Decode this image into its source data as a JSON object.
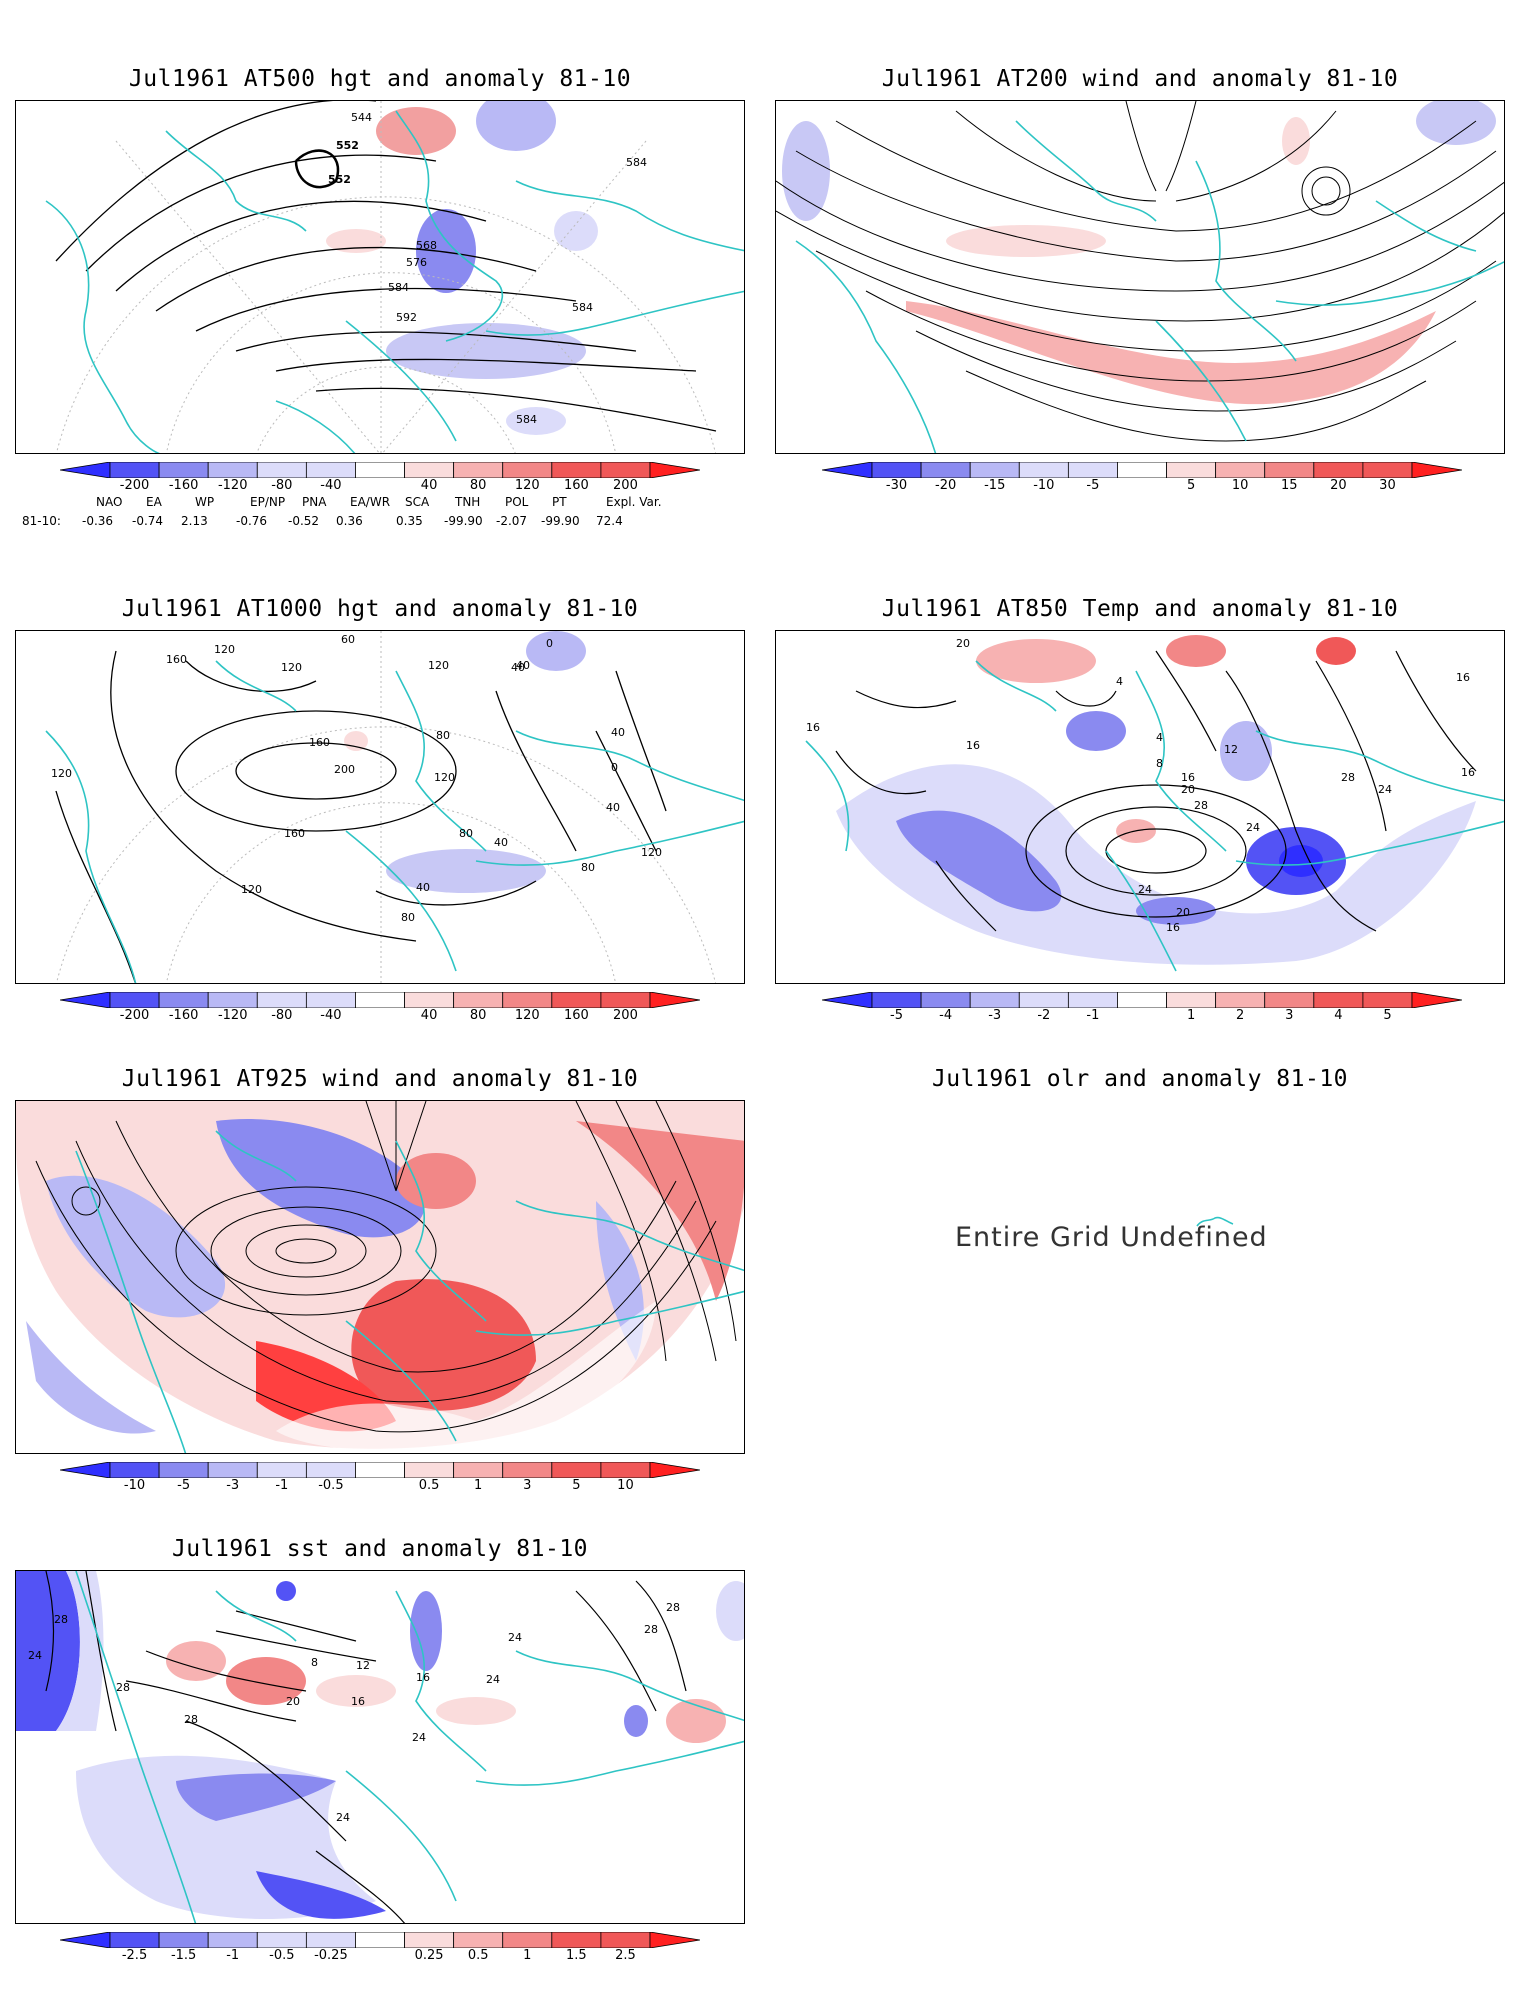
{
  "panels": [
    {
      "id": "p500",
      "title": "Jul1961 AT500 hgt and anomaly 81-10",
      "contour_labels": [
        "544",
        "552",
        "552",
        "568",
        "576",
        "584",
        "584",
        "592",
        "584",
        "584"
      ],
      "colorbar": [
        "-200",
        "-160",
        "-120",
        "-80",
        "-40",
        "40",
        "80",
        "120",
        "160",
        "200"
      ]
    },
    {
      "id": "p200",
      "title": "Jul1961 AT200 wind and anomaly 81-10",
      "colorbar": [
        "-30",
        "-20",
        "-15",
        "-10",
        "-5",
        "5",
        "10",
        "15",
        "20",
        "30"
      ]
    },
    {
      "id": "p1000",
      "title": "Jul1961 AT1000 hgt and anomaly 81-10",
      "contour_labels": [
        "160",
        "120",
        "120",
        "60",
        "120",
        "160",
        "200",
        "160",
        "120",
        "120",
        "40",
        "0",
        "80",
        "120",
        "80",
        "40",
        "40",
        "80",
        "80",
        "40",
        "0",
        "40",
        "120",
        "40"
      ],
      "colorbar": [
        "-200",
        "-160",
        "-120",
        "-80",
        "-40",
        "40",
        "80",
        "120",
        "160",
        "200"
      ]
    },
    {
      "id": "p850",
      "title": "Jul1961 AT850 Temp and anomaly 81-10",
      "contour_labels": [
        "20",
        "16",
        "16",
        "4",
        "4",
        "8",
        "12",
        "16",
        "20",
        "28",
        "24",
        "28",
        "24",
        "24",
        "20",
        "16",
        "16",
        "16"
      ],
      "colorbar": [
        "-5",
        "-4",
        "-3",
        "-2",
        "-1",
        "1",
        "2",
        "3",
        "4",
        "5"
      ]
    },
    {
      "id": "p925",
      "title": "Jul1961 AT925 wind and anomaly 81-10",
      "colorbar": [
        "-10",
        "-5",
        "-3",
        "-1",
        "-0.5",
        "0.5",
        "1",
        "3",
        "5",
        "10"
      ]
    },
    {
      "id": "polr",
      "title": "Jul1961 olr and anomaly 81-10",
      "message": "Entire Grid Undefined"
    },
    {
      "id": "psst",
      "title": "Jul1961 sst and anomaly 81-10",
      "contour_labels": [
        "28",
        "24",
        "28",
        "28",
        "8",
        "12",
        "20",
        "16",
        "16",
        "24",
        "24",
        "24",
        "24",
        "28",
        "28"
      ],
      "colorbar": [
        "-2.5",
        "-1.5",
        "-1",
        "-0.5",
        "-0.25",
        "0.25",
        "0.5",
        "1",
        "1.5",
        "2.5"
      ]
    }
  ],
  "indices": {
    "headers": [
      "NAO",
      "EA",
      "WP",
      "EP/NP",
      "PNA",
      "EA/WR",
      "SCA",
      "TNH",
      "POL",
      "PT",
      "Expl. Var."
    ],
    "row_label": "81-10:",
    "values": [
      "-0.36",
      "-0.74",
      "2.13",
      "-0.76",
      "-0.52",
      "0.36",
      "0.35",
      "-99.90",
      "-2.07",
      "-99.90",
      "72.4"
    ]
  },
  "colors": {
    "coast": "#2ec4c4",
    "neg": [
      "#2f2fff",
      "#5353f5",
      "#8a8af0",
      "#b9b9f5",
      "#dcdcfa"
    ],
    "pos": [
      "#fadcdc",
      "#f7b2b2",
      "#f28787",
      "#f05858",
      "#ff2020"
    ]
  }
}
